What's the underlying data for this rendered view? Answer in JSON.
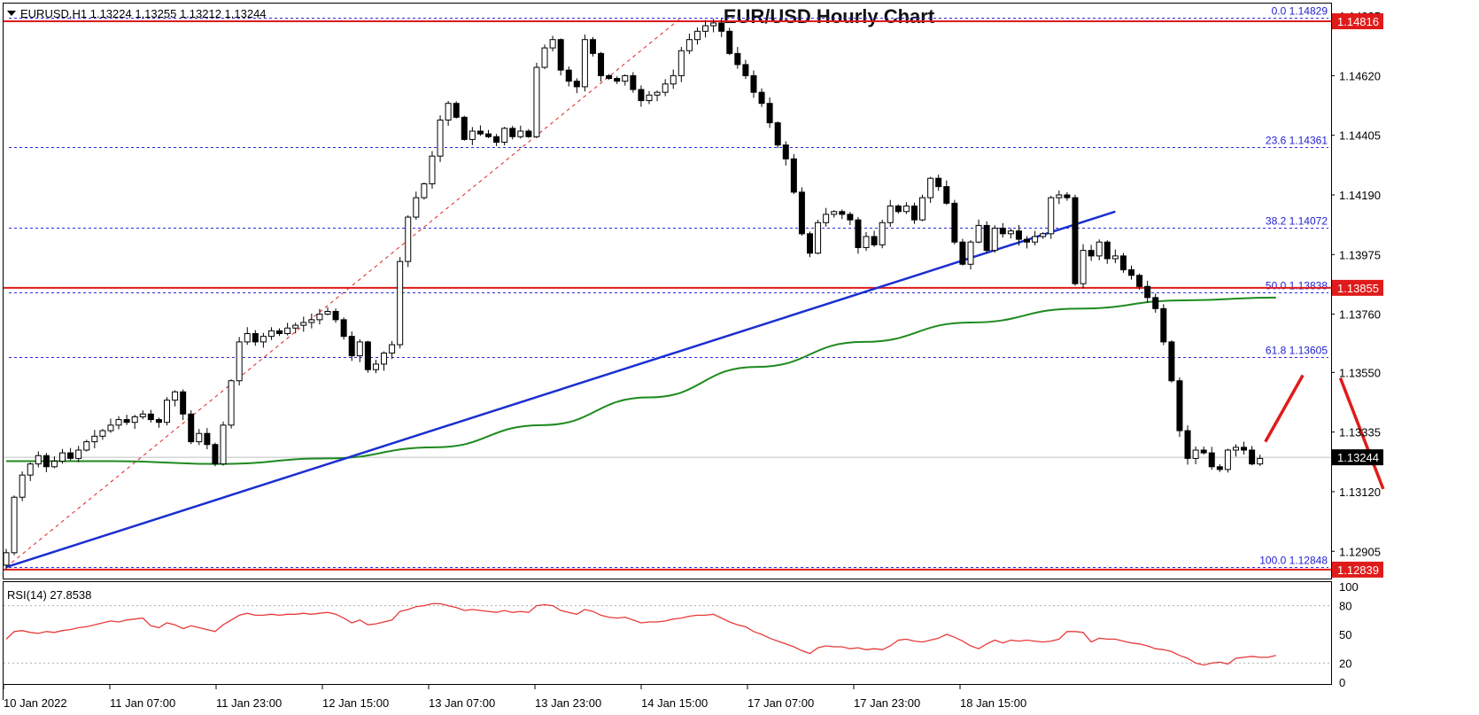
{
  "header": {
    "symbol_info": "EURUSD,H1  1.13224 1.13255 1.13212 1.13244",
    "title": "EUR/USD Hourly Chart"
  },
  "colors": {
    "bull_candle": "#ffffff",
    "bear_candle": "#000000",
    "support_resistance": "#e01b1b",
    "fib_lines": "#2a2ae0",
    "trendline": "#1b2fd0",
    "moving_average": "#1e8a1e",
    "rsi_line": "#e83a3a",
    "current_price_tag": "#000000"
  },
  "chart_data": [
    {
      "type": "candlestick",
      "symbol": "EURUSD",
      "timeframe": "H1",
      "title": "EUR/USD Hourly Chart",
      "ylim": [
        1.1281,
        1.1488
      ],
      "y_ticks": [
        1.14835,
        1.1462,
        1.14405,
        1.1419,
        1.13975,
        1.1376,
        1.1355,
        1.13335,
        1.1312,
        1.12905
      ],
      "y_tick_labels": [
        "1.14835",
        "1.14620",
        "1.14405",
        "1.14190",
        "1.13975",
        "1.13760",
        "1.13550",
        "1.13335",
        "1.13120",
        "1.12905"
      ],
      "x_tick_labels": [
        "10 Jan 2022",
        "11 Jan 07:00",
        "11 Jan 23:00",
        "12 Jan 15:00",
        "13 Jan 07:00",
        "13 Jan 23:00",
        "14 Jan 15:00",
        "17 Jan 07:00",
        "17 Jan 23:00",
        "18 Jan 15:00"
      ],
      "closes": [
        1.129,
        1.131,
        1.1318,
        1.1322,
        1.1325,
        1.1321,
        1.1323,
        1.1326,
        1.1324,
        1.1327,
        1.133,
        1.1332,
        1.1334,
        1.1336,
        1.1338,
        1.1337,
        1.1339,
        1.134,
        1.1338,
        1.1337,
        1.1345,
        1.1348,
        1.134,
        1.133,
        1.1333,
        1.1329,
        1.1322,
        1.1336,
        1.1352,
        1.1366,
        1.1369,
        1.1366,
        1.1368,
        1.137,
        1.1369,
        1.1371,
        1.1372,
        1.1373,
        1.1374,
        1.1376,
        1.1377,
        1.1374,
        1.1368,
        1.1361,
        1.1366,
        1.1356,
        1.1358,
        1.1362,
        1.1365,
        1.1395,
        1.1411,
        1.1418,
        1.1423,
        1.1433,
        1.1446,
        1.1452,
        1.1447,
        1.1439,
        1.1442,
        1.1441,
        1.144,
        1.1438,
        1.1443,
        1.144,
        1.1442,
        1.144,
        1.1465,
        1.1472,
        1.1475,
        1.1464,
        1.146,
        1.1458,
        1.1475,
        1.147,
        1.1462,
        1.1461,
        1.146,
        1.1462,
        1.1457,
        1.1453,
        1.1455,
        1.1456,
        1.1459,
        1.1462,
        1.1471,
        1.1475,
        1.1478,
        1.148,
        1.1481,
        1.1478,
        1.147,
        1.1466,
        1.1462,
        1.1456,
        1.1452,
        1.1445,
        1.1437,
        1.1432,
        1.142,
        1.1405,
        1.1398,
        1.1409,
        1.1412,
        1.1413,
        1.1412,
        1.141,
        1.14,
        1.1404,
        1.1401,
        1.1409,
        1.1415,
        1.1413,
        1.1415,
        1.141,
        1.1418,
        1.1425,
        1.1422,
        1.1416,
        1.1402,
        1.1394,
        1.1402,
        1.1408,
        1.1399,
        1.1407,
        1.1405,
        1.1406,
        1.1403,
        1.1402,
        1.1404,
        1.1405,
        1.1418,
        1.1419,
        1.1418,
        1.1387,
        1.1399,
        1.1397,
        1.1402,
        1.1396,
        1.1397,
        1.1392,
        1.139,
        1.1386,
        1.1382,
        1.1378,
        1.1366,
        1.1352,
        1.1334,
        1.1324,
        1.1327,
        1.1326,
        1.1321,
        1.132,
        1.1327,
        1.1328,
        1.1327,
        1.1322,
        1.1324
      ]
    },
    {
      "type": "line",
      "name": "RSI(14) 27.8538",
      "label": "RSI(14) 27.8538",
      "ylim": [
        0,
        100
      ],
      "y_ticks": [
        100,
        80,
        50,
        20,
        0
      ],
      "levels": [
        80,
        20
      ],
      "values": [
        45,
        53,
        54,
        52,
        51,
        53,
        52,
        54,
        55,
        57,
        58,
        60,
        62,
        64,
        63,
        65,
        66,
        67,
        59,
        57,
        62,
        60,
        56,
        59,
        57,
        55,
        53,
        60,
        65,
        70,
        72,
        70,
        70,
        71,
        70,
        71,
        71,
        72,
        71,
        72,
        73,
        71,
        67,
        62,
        65,
        60,
        61,
        63,
        65,
        74,
        76,
        79,
        80,
        82,
        82,
        80,
        78,
        75,
        76,
        75,
        74,
        73,
        75,
        73,
        74,
        73,
        80,
        81,
        80,
        75,
        73,
        71,
        76,
        74,
        70,
        68,
        67,
        68,
        65,
        62,
        63,
        63,
        64,
        66,
        67,
        69,
        70,
        70,
        71,
        67,
        63,
        60,
        58,
        53,
        50,
        46,
        43,
        40,
        37,
        33,
        30,
        36,
        38,
        37,
        37,
        35,
        36,
        34,
        35,
        34,
        38,
        44,
        45,
        43,
        42,
        44,
        46,
        50,
        47,
        43,
        38,
        35,
        40,
        44,
        41,
        44,
        43,
        44,
        43,
        42,
        43,
        45,
        53,
        53,
        52,
        42,
        46,
        45,
        45,
        43,
        41,
        40,
        38,
        35,
        34,
        32,
        28,
        25,
        20,
        18,
        20,
        21,
        19,
        25,
        26,
        27,
        26,
        26,
        28
      ]
    }
  ],
  "levels": {
    "resistance_high": {
      "value": 1.14816,
      "label": "1.14816"
    },
    "support_mid": {
      "value": 1.13855,
      "label": "1.13855"
    },
    "support_low": {
      "value": 1.12839,
      "label": "1.12839"
    },
    "current_price": {
      "value": 1.13244,
      "label": "1.13244"
    }
  },
  "fibonacci": [
    {
      "value": 1.14829,
      "label": "0.0 1.14829"
    },
    {
      "value": 1.14361,
      "label": "23.6 1.14361"
    },
    {
      "value": 1.14072,
      "label": "38.2 1.14072"
    },
    {
      "value": 1.13838,
      "label": "50.0 1.13838"
    },
    {
      "value": 1.13605,
      "label": "61.8 1.13605"
    },
    {
      "value": 1.12848,
      "label": "100.0 1.12848"
    }
  ],
  "moving_average": [
    {
      "bar": 0,
      "value": 1.1323
    },
    {
      "bar": 20,
      "value": 1.1323
    },
    {
      "bar": 40,
      "value": 1.1322
    },
    {
      "bar": 60,
      "value": 1.1324
    },
    {
      "bar": 80,
      "value": 1.1328
    },
    {
      "bar": 100,
      "value": 1.1336
    },
    {
      "bar": 120,
      "value": 1.1346
    },
    {
      "bar": 140,
      "value": 1.1357
    },
    {
      "bar": 160,
      "value": 1.1366
    },
    {
      "bar": 180,
      "value": 1.1373
    },
    {
      "bar": 200,
      "value": 1.1378
    },
    {
      "bar": 220,
      "value": 1.1381
    },
    {
      "bar": 237,
      "value": 1.1382
    }
  ],
  "trendlines": [
    {
      "name": "rising-support-trendline",
      "from": {
        "bar": 0,
        "value": 1.12848
      },
      "to": {
        "bar": 207,
        "value": 1.1413
      }
    }
  ],
  "fib_swing_line": {
    "from": {
      "bar": 0,
      "value": 1.12848
    },
    "to": {
      "bar": 126,
      "value": 1.14829
    }
  },
  "projection_arrows": [
    {
      "from": {
        "bar": 235,
        "value": 1.133
      },
      "to": {
        "bar": 242,
        "value": 1.1354
      }
    },
    {
      "from": {
        "bar": 249,
        "value": 1.1353
      },
      "to": {
        "bar": 257,
        "value": 1.1313
      }
    }
  ]
}
